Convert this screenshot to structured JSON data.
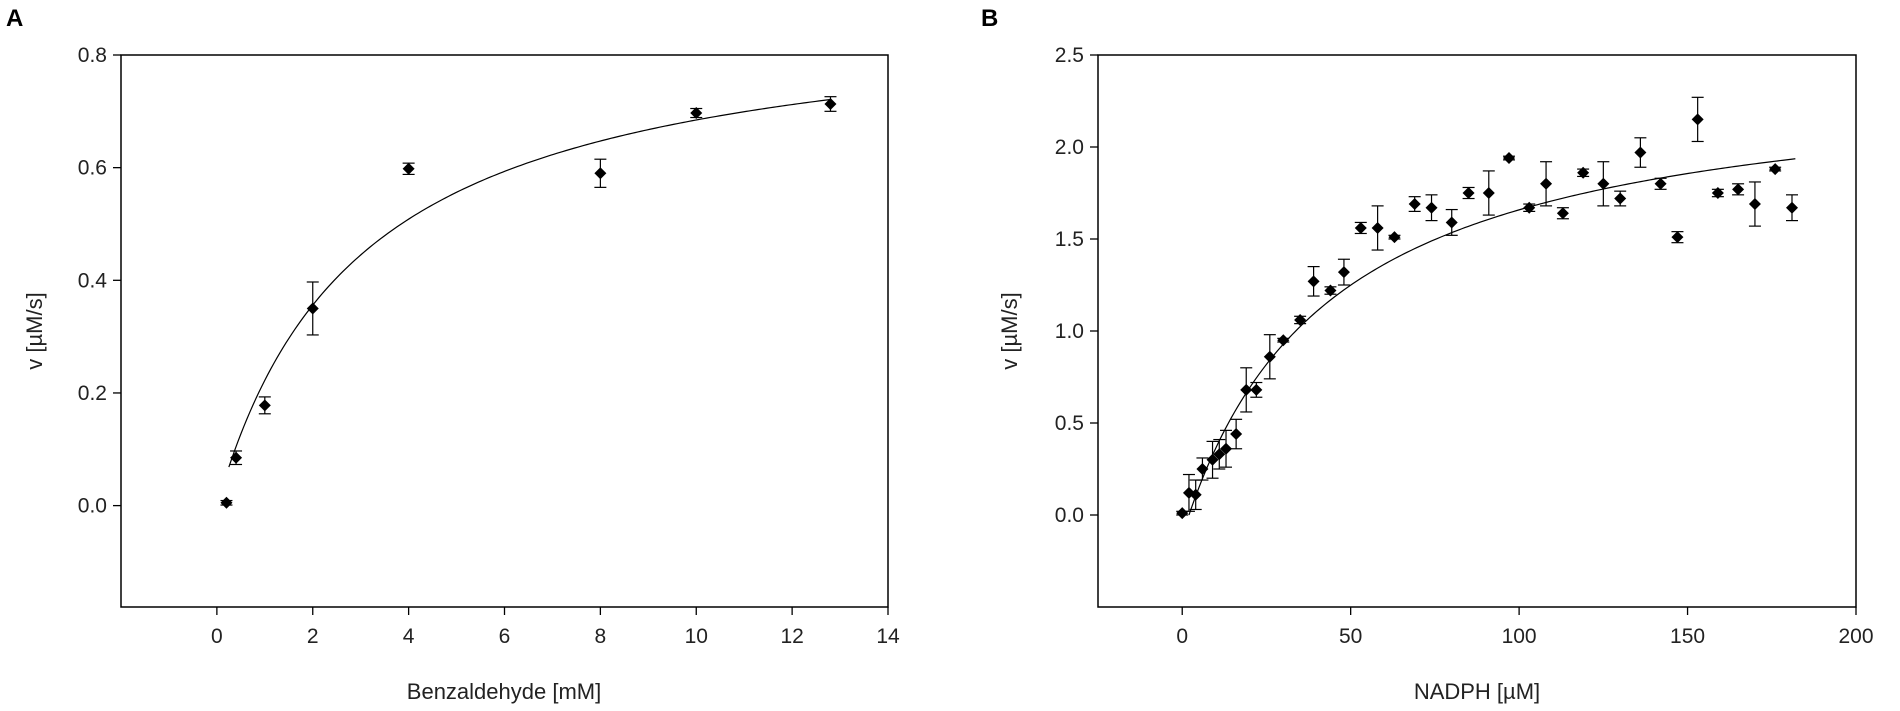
{
  "chart_data": [
    {
      "panel": "A",
      "type": "scatter",
      "title": "",
      "xlabel": "Benzaldehyde [mM]",
      "ylabel": "v [µM/s]",
      "xlim": [
        -2,
        14
      ],
      "ylim": [
        -0.18,
        0.8
      ],
      "xticks": [
        0,
        2,
        4,
        6,
        8,
        10,
        12,
        14
      ],
      "xtick_labels": [
        "0",
        "2",
        "4",
        "6",
        "8",
        "10",
        "12",
        "14"
      ],
      "yticks": [
        0.0,
        0.2,
        0.4,
        0.6,
        0.8
      ],
      "ytick_labels": [
        "0.0",
        "0.2",
        "0.4",
        "0.6",
        "0.8"
      ],
      "grid": false,
      "fit": {
        "model": "michaelis-menten",
        "vmax": 0.89,
        "km": 3.0,
        "x_range": [
          0.25,
          12.8
        ]
      },
      "points": [
        {
          "x": 0.2,
          "y": 0.005,
          "err": 0.004
        },
        {
          "x": 0.4,
          "y": 0.085,
          "err": 0.012
        },
        {
          "x": 1.0,
          "y": 0.178,
          "err": 0.015
        },
        {
          "x": 2.0,
          "y": 0.35,
          "err": 0.047
        },
        {
          "x": 4.0,
          "y": 0.598,
          "err": 0.01
        },
        {
          "x": 8.0,
          "y": 0.59,
          "err": 0.025
        },
        {
          "x": 10.0,
          "y": 0.697,
          "err": 0.008
        },
        {
          "x": 12.8,
          "y": 0.713,
          "err": 0.013
        }
      ]
    },
    {
      "panel": "B",
      "type": "scatter",
      "title": "",
      "xlabel": "NADPH [µM]",
      "ylabel": "v [µM/s]",
      "xlim": [
        -25,
        200
      ],
      "ylim": [
        -0.5,
        2.5
      ],
      "xticks": [
        0,
        50,
        100,
        150,
        200
      ],
      "xtick_labels": [
        "0",
        "50",
        "100",
        "150",
        "200"
      ],
      "yticks": [
        0.0,
        0.5,
        1.0,
        1.5,
        2.0,
        2.5
      ],
      "ytick_labels": [
        "0.0",
        "0.5",
        "1.0",
        "1.5",
        "2.0",
        "2.5"
      ],
      "grid": false,
      "fit": {
        "model": "michaelis-menten-offset",
        "vmax": 2.42,
        "km": 45,
        "x0": 2,
        "x_range": [
          2,
          182
        ]
      },
      "points": [
        {
          "x": 0,
          "y": 0.01,
          "err": 0.01
        },
        {
          "x": 2,
          "y": 0.12,
          "err": 0.1
        },
        {
          "x": 4,
          "y": 0.11,
          "err": 0.08
        },
        {
          "x": 6,
          "y": 0.25,
          "err": 0.06
        },
        {
          "x": 9,
          "y": 0.3,
          "err": 0.1
        },
        {
          "x": 11,
          "y": 0.33,
          "err": 0.08
        },
        {
          "x": 13,
          "y": 0.36,
          "err": 0.1
        },
        {
          "x": 16,
          "y": 0.44,
          "err": 0.08
        },
        {
          "x": 19,
          "y": 0.68,
          "err": 0.12
        },
        {
          "x": 22,
          "y": 0.68,
          "err": 0.04
        },
        {
          "x": 26,
          "y": 0.86,
          "err": 0.12
        },
        {
          "x": 30,
          "y": 0.95,
          "err": 0.01
        },
        {
          "x": 35,
          "y": 1.06,
          "err": 0.02
        },
        {
          "x": 39,
          "y": 1.27,
          "err": 0.08
        },
        {
          "x": 44,
          "y": 1.22,
          "err": 0.02
        },
        {
          "x": 48,
          "y": 1.32,
          "err": 0.07
        },
        {
          "x": 53,
          "y": 1.56,
          "err": 0.03
        },
        {
          "x": 58,
          "y": 1.56,
          "err": 0.12
        },
        {
          "x": 63,
          "y": 1.51,
          "err": 0.01
        },
        {
          "x": 69,
          "y": 1.69,
          "err": 0.04
        },
        {
          "x": 74,
          "y": 1.67,
          "err": 0.07
        },
        {
          "x": 80,
          "y": 1.59,
          "err": 0.07
        },
        {
          "x": 85,
          "y": 1.75,
          "err": 0.03
        },
        {
          "x": 91,
          "y": 1.75,
          "err": 0.12
        },
        {
          "x": 97,
          "y": 1.94,
          "err": 0.01
        },
        {
          "x": 103,
          "y": 1.67,
          "err": 0.02
        },
        {
          "x": 108,
          "y": 1.8,
          "err": 0.12
        },
        {
          "x": 113,
          "y": 1.64,
          "err": 0.03
        },
        {
          "x": 119,
          "y": 1.86,
          "err": 0.02
        },
        {
          "x": 125,
          "y": 1.8,
          "err": 0.12
        },
        {
          "x": 130,
          "y": 1.72,
          "err": 0.04
        },
        {
          "x": 136,
          "y": 1.97,
          "err": 0.08
        },
        {
          "x": 142,
          "y": 1.8,
          "err": 0.03
        },
        {
          "x": 147,
          "y": 1.51,
          "err": 0.03
        },
        {
          "x": 153,
          "y": 2.15,
          "err": 0.12
        },
        {
          "x": 159,
          "y": 1.75,
          "err": 0.02
        },
        {
          "x": 165,
          "y": 1.77,
          "err": 0.03
        },
        {
          "x": 170,
          "y": 1.69,
          "err": 0.12
        },
        {
          "x": 176,
          "y": 1.88,
          "err": 0.01
        },
        {
          "x": 181,
          "y": 1.67,
          "err": 0.07
        }
      ]
    }
  ]
}
